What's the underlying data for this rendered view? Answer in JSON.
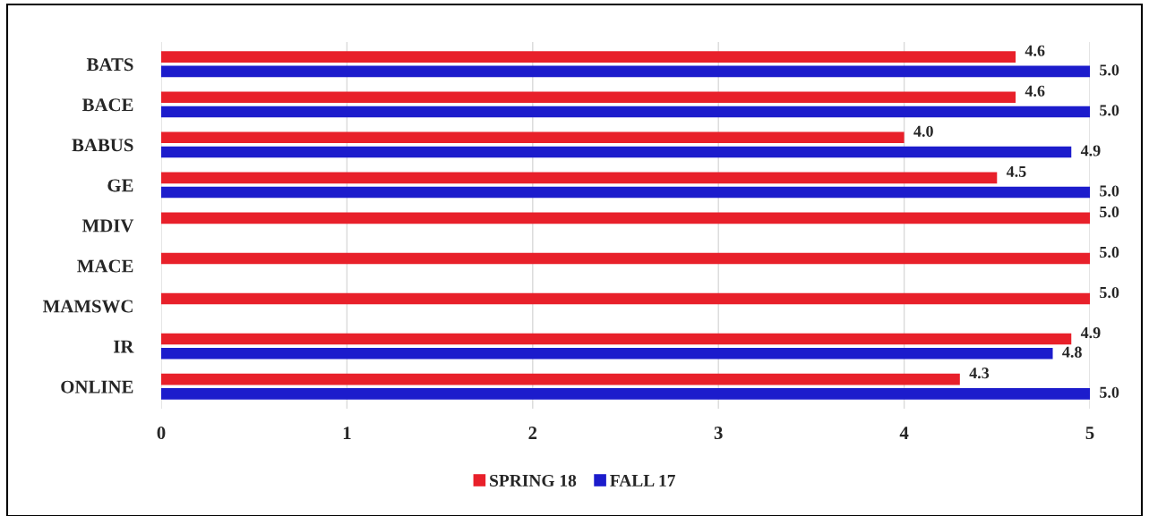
{
  "chart_data": {
    "type": "bar",
    "orientation": "horizontal",
    "categories": [
      "BATS",
      "BACE",
      "BABUS",
      "GE",
      "MDIV",
      "MACE",
      "MAMSWC",
      "IR",
      "ONLINE"
    ],
    "series": [
      {
        "name": "SPRING 18",
        "color": "#e8202a",
        "values": [
          4.6,
          4.6,
          4.0,
          4.5,
          5.0,
          5.0,
          5.0,
          4.9,
          4.3
        ],
        "value_labels": [
          "4.6",
          "4.6",
          "4.0",
          "4.5",
          "5.0",
          "5.0",
          "5.0",
          "4.9",
          "4.3"
        ]
      },
      {
        "name": "FALL 17",
        "color": "#1c1ccc",
        "values": [
          5.0,
          5.0,
          4.9,
          5.0,
          null,
          null,
          null,
          4.8,
          5.0
        ],
        "value_labels": [
          "5.0",
          "5.0",
          "4.9",
          "5.0",
          null,
          null,
          null,
          "4.8",
          "5.0"
        ]
      }
    ],
    "xlim": [
      0,
      5
    ],
    "xticks": [
      0,
      1,
      2,
      3,
      4,
      5
    ],
    "grid": "x",
    "legend": "bottom"
  }
}
